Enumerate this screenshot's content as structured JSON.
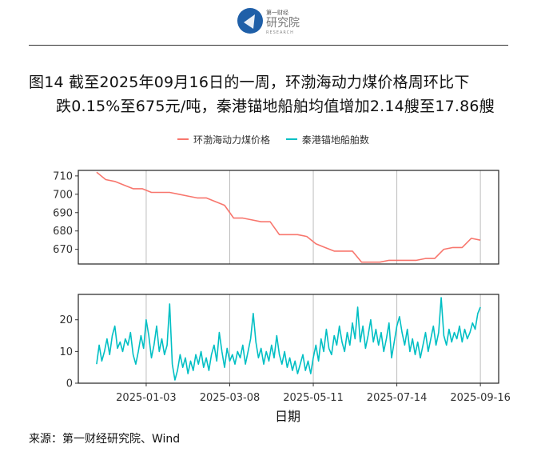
{
  "header": {
    "logo_text_cn": "第一财经",
    "logo_text_main": "研究院",
    "logo_text_en": "RESEARCH"
  },
  "title": {
    "line1": "图14  截至2025年09月16日的一周，环渤海动力煤价格周环比下",
    "line2": "跌0.15%至675元/吨，秦港锚地船舶均值增加2.14艘至17.86艘"
  },
  "legend": [
    {
      "label": "环渤海动力煤价格",
      "color": "#F8766D"
    },
    {
      "label": "秦港锚地船舶数",
      "color": "#00BFC4"
    }
  ],
  "source": "来源：第一财经研究院、Wind",
  "chart_data": {
    "type": "line",
    "xlabel": "日期",
    "x_ticks": [
      "2025-01-03",
      "2025-03-08",
      "2025-05-11",
      "2025-07-14",
      "2025-09-16"
    ],
    "x_range": [
      "2024-11-12",
      "2025-09-30"
    ],
    "grid": true,
    "legend_position": "top",
    "panels": [
      {
        "series_name": "环渤海动力煤价格",
        "color": "#F8766D",
        "ylim": [
          662,
          713
        ],
        "y_ticks": [
          670,
          680,
          690,
          700,
          710
        ],
        "points": [
          [
            "2024-11-26",
            712
          ],
          [
            "2024-12-03",
            708
          ],
          [
            "2024-12-10",
            707
          ],
          [
            "2024-12-17",
            705
          ],
          [
            "2024-12-24",
            703
          ],
          [
            "2024-12-31",
            703
          ],
          [
            "2025-01-07",
            701
          ],
          [
            "2025-01-14",
            701
          ],
          [
            "2025-01-21",
            701
          ],
          [
            "2025-01-28",
            700
          ],
          [
            "2025-02-04",
            699
          ],
          [
            "2025-02-11",
            698
          ],
          [
            "2025-02-18",
            698
          ],
          [
            "2025-02-25",
            696
          ],
          [
            "2025-03-04",
            694
          ],
          [
            "2025-03-11",
            687
          ],
          [
            "2025-03-18",
            687
          ],
          [
            "2025-03-25",
            686
          ],
          [
            "2025-04-01",
            685
          ],
          [
            "2025-04-08",
            685
          ],
          [
            "2025-04-15",
            678
          ],
          [
            "2025-04-22",
            678
          ],
          [
            "2025-04-29",
            678
          ],
          [
            "2025-05-06",
            677
          ],
          [
            "2025-05-13",
            673
          ],
          [
            "2025-05-20",
            671
          ],
          [
            "2025-05-27",
            669
          ],
          [
            "2025-06-03",
            669
          ],
          [
            "2025-06-10",
            669
          ],
          [
            "2025-06-17",
            663
          ],
          [
            "2025-06-24",
            663
          ],
          [
            "2025-07-01",
            663
          ],
          [
            "2025-07-08",
            664
          ],
          [
            "2025-07-15",
            664
          ],
          [
            "2025-07-22",
            664
          ],
          [
            "2025-07-29",
            664
          ],
          [
            "2025-08-05",
            665
          ],
          [
            "2025-08-12",
            665
          ],
          [
            "2025-08-19",
            670
          ],
          [
            "2025-08-26",
            671
          ],
          [
            "2025-09-02",
            671
          ],
          [
            "2025-09-09",
            676
          ],
          [
            "2025-09-16",
            675
          ]
        ]
      },
      {
        "series_name": "秦港锚地船舶数",
        "color": "#00BFC4",
        "ylim": [
          0,
          28
        ],
        "y_ticks": [
          0,
          10,
          20
        ],
        "points": [
          [
            "2024-11-26",
            6
          ],
          [
            "2024-11-28",
            12
          ],
          [
            "2024-11-30",
            7
          ],
          [
            "2024-12-02",
            10
          ],
          [
            "2024-12-04",
            14
          ],
          [
            "2024-12-06",
            9
          ],
          [
            "2024-12-08",
            15
          ],
          [
            "2024-12-10",
            18
          ],
          [
            "2024-12-12",
            11
          ],
          [
            "2024-12-14",
            13
          ],
          [
            "2024-12-16",
            10
          ],
          [
            "2024-12-18",
            14
          ],
          [
            "2024-12-20",
            12
          ],
          [
            "2024-12-22",
            16
          ],
          [
            "2024-12-24",
            9
          ],
          [
            "2024-12-26",
            6
          ],
          [
            "2024-12-28",
            10
          ],
          [
            "2024-12-30",
            15
          ],
          [
            "2025-01-01",
            11
          ],
          [
            "2025-01-03",
            20
          ],
          [
            "2025-01-05",
            15
          ],
          [
            "2025-01-07",
            8
          ],
          [
            "2025-01-09",
            12
          ],
          [
            "2025-01-11",
            18
          ],
          [
            "2025-01-13",
            10
          ],
          [
            "2025-01-15",
            14
          ],
          [
            "2025-01-17",
            9
          ],
          [
            "2025-01-19",
            12
          ],
          [
            "2025-01-21",
            25
          ],
          [
            "2025-01-23",
            6
          ],
          [
            "2025-01-25",
            1
          ],
          [
            "2025-01-27",
            4
          ],
          [
            "2025-01-29",
            9
          ],
          [
            "2025-01-31",
            5
          ],
          [
            "2025-02-02",
            8
          ],
          [
            "2025-02-04",
            3
          ],
          [
            "2025-02-06",
            7
          ],
          [
            "2025-02-08",
            4
          ],
          [
            "2025-02-10",
            9
          ],
          [
            "2025-02-12",
            6
          ],
          [
            "2025-02-14",
            10
          ],
          [
            "2025-02-16",
            5
          ],
          [
            "2025-02-18",
            8
          ],
          [
            "2025-02-20",
            4
          ],
          [
            "2025-02-22",
            9
          ],
          [
            "2025-02-24",
            12
          ],
          [
            "2025-02-26",
            7
          ],
          [
            "2025-02-28",
            16
          ],
          [
            "2025-03-02",
            10
          ],
          [
            "2025-03-04",
            5
          ],
          [
            "2025-03-06",
            11
          ],
          [
            "2025-03-08",
            7
          ],
          [
            "2025-03-10",
            9
          ],
          [
            "2025-03-12",
            6
          ],
          [
            "2025-03-14",
            10
          ],
          [
            "2025-03-16",
            8
          ],
          [
            "2025-03-18",
            12
          ],
          [
            "2025-03-20",
            6
          ],
          [
            "2025-03-22",
            10
          ],
          [
            "2025-03-24",
            14
          ],
          [
            "2025-03-26",
            22
          ],
          [
            "2025-03-28",
            13
          ],
          [
            "2025-03-30",
            8
          ],
          [
            "2025-04-01",
            11
          ],
          [
            "2025-04-03",
            6
          ],
          [
            "2025-04-05",
            10
          ],
          [
            "2025-04-07",
            7
          ],
          [
            "2025-04-09",
            12
          ],
          [
            "2025-04-11",
            8
          ],
          [
            "2025-04-13",
            15
          ],
          [
            "2025-04-15",
            9
          ],
          [
            "2025-04-17",
            6
          ],
          [
            "2025-04-19",
            10
          ],
          [
            "2025-04-21",
            5
          ],
          [
            "2025-04-23",
            8
          ],
          [
            "2025-04-25",
            4
          ],
          [
            "2025-04-27",
            7
          ],
          [
            "2025-04-29",
            3
          ],
          [
            "2025-05-01",
            6
          ],
          [
            "2025-05-03",
            9
          ],
          [
            "2025-05-05",
            4
          ],
          [
            "2025-05-07",
            7
          ],
          [
            "2025-05-09",
            3
          ],
          [
            "2025-05-11",
            8
          ],
          [
            "2025-05-13",
            12
          ],
          [
            "2025-05-15",
            7
          ],
          [
            "2025-05-17",
            14
          ],
          [
            "2025-05-19",
            10
          ],
          [
            "2025-05-21",
            17
          ],
          [
            "2025-05-23",
            11
          ],
          [
            "2025-05-25",
            9
          ],
          [
            "2025-05-27",
            15
          ],
          [
            "2025-05-29",
            12
          ],
          [
            "2025-05-31",
            18
          ],
          [
            "2025-06-02",
            13
          ],
          [
            "2025-06-04",
            10
          ],
          [
            "2025-06-06",
            16
          ],
          [
            "2025-06-08",
            12
          ],
          [
            "2025-06-10",
            19
          ],
          [
            "2025-06-12",
            14
          ],
          [
            "2025-06-14",
            24
          ],
          [
            "2025-06-16",
            13
          ],
          [
            "2025-06-18",
            18
          ],
          [
            "2025-06-20",
            11
          ],
          [
            "2025-06-22",
            15
          ],
          [
            "2025-06-24",
            20
          ],
          [
            "2025-06-26",
            13
          ],
          [
            "2025-06-28",
            17
          ],
          [
            "2025-06-30",
            12
          ],
          [
            "2025-07-02",
            16
          ],
          [
            "2025-07-04",
            10
          ],
          [
            "2025-07-06",
            14
          ],
          [
            "2025-07-08",
            19
          ],
          [
            "2025-07-10",
            8
          ],
          [
            "2025-07-12",
            13
          ],
          [
            "2025-07-14",
            18
          ],
          [
            "2025-07-16",
            21
          ],
          [
            "2025-07-18",
            16
          ],
          [
            "2025-07-20",
            12
          ],
          [
            "2025-07-22",
            17
          ],
          [
            "2025-07-24",
            10
          ],
          [
            "2025-07-26",
            14
          ],
          [
            "2025-07-28",
            9
          ],
          [
            "2025-07-30",
            13
          ],
          [
            "2025-08-01",
            8
          ],
          [
            "2025-08-03",
            12
          ],
          [
            "2025-08-05",
            16
          ],
          [
            "2025-08-07",
            10
          ],
          [
            "2025-08-09",
            14
          ],
          [
            "2025-08-11",
            18
          ],
          [
            "2025-08-13",
            12
          ],
          [
            "2025-08-15",
            16
          ],
          [
            "2025-08-17",
            27
          ],
          [
            "2025-08-19",
            15
          ],
          [
            "2025-08-21",
            12
          ],
          [
            "2025-08-23",
            17
          ],
          [
            "2025-08-25",
            13
          ],
          [
            "2025-08-27",
            16
          ],
          [
            "2025-08-29",
            14
          ],
          [
            "2025-08-31",
            18
          ],
          [
            "2025-09-02",
            13
          ],
          [
            "2025-09-04",
            17
          ],
          [
            "2025-09-06",
            14
          ],
          [
            "2025-09-08",
            16
          ],
          [
            "2025-09-10",
            19
          ],
          [
            "2025-09-12",
            17
          ],
          [
            "2025-09-14",
            22
          ],
          [
            "2025-09-16",
            24
          ]
        ]
      }
    ]
  }
}
